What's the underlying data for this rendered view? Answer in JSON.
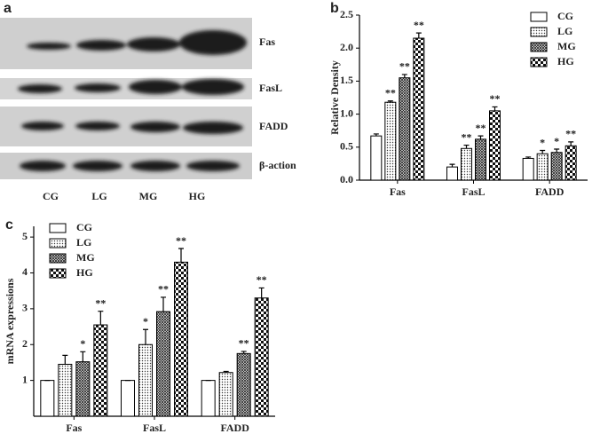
{
  "panel_a": {
    "panel": "a",
    "rows": [
      "Fas",
      "FasL",
      "FADD",
      "β-action"
    ],
    "columns": [
      "CG",
      "LG",
      "MG",
      "HG"
    ]
  },
  "chart_data": [
    {
      "type": "bar",
      "panel": "b",
      "y_label": "Relative Density",
      "categories": [
        "Fas",
        "FasL",
        "FADD"
      ],
      "ylim": [
        0,
        2.5
      ],
      "yticks": [
        {
          "value": 0,
          "label": "0.0"
        },
        0.5,
        {
          "value": 1,
          "label": "1.0"
        },
        1.5,
        {
          "value": 2,
          "label": "2.0"
        },
        2.5
      ],
      "legend": "upper right",
      "series": [
        {
          "name": "CG",
          "color": "#000000",
          "pattern": "plain",
          "values": [
            0.67,
            0.2,
            0.33
          ],
          "errors": [
            0.03,
            0.04,
            0.02
          ],
          "significance": [
            null,
            null,
            null
          ]
        },
        {
          "name": "LG",
          "color": "#000000",
          "pattern": "dots",
          "values": [
            1.18,
            0.48,
            0.4
          ],
          "errors": [
            0.02,
            0.05,
            0.05
          ],
          "significance": [
            "**",
            "**",
            "*"
          ]
        },
        {
          "name": "MG",
          "color": "#000000",
          "pattern": "crosshatch",
          "values": [
            1.55,
            0.62,
            0.42
          ],
          "errors": [
            0.05,
            0.05,
            0.05
          ],
          "significance": [
            "**",
            "**",
            "*"
          ]
        },
        {
          "name": "HG",
          "color": "#000000",
          "pattern": "checker",
          "values": [
            2.15,
            1.05,
            0.52
          ],
          "errors": [
            0.08,
            0.06,
            0.06
          ],
          "significance": [
            "**",
            "**",
            "**"
          ]
        }
      ]
    },
    {
      "type": "bar",
      "panel": "c",
      "y_label": "mRNA expressions",
      "categories": [
        "Fas",
        "FasL",
        "FADD"
      ],
      "ylim": [
        0,
        5.3
      ],
      "yticks": [
        1,
        2,
        3,
        4,
        5
      ],
      "legend": "upper left",
      "series": [
        {
          "name": "CG",
          "color": "#000000",
          "pattern": "plain",
          "values": [
            1,
            1,
            1
          ],
          "errors": [
            0,
            0,
            0
          ],
          "significance": [
            null,
            null,
            null
          ]
        },
        {
          "name": "LG",
          "color": "#000000",
          "pattern": "dots",
          "values": [
            1.45,
            2.0,
            1.22
          ],
          "errors": [
            0.25,
            0.42,
            0.03
          ],
          "significance": [
            null,
            "*",
            null
          ]
        },
        {
          "name": "MG",
          "color": "#000000",
          "pattern": "crosshatch",
          "values": [
            1.52,
            2.92,
            1.75
          ],
          "errors": [
            0.28,
            0.4,
            0.06
          ],
          "significance": [
            "*",
            "**",
            "**"
          ]
        },
        {
          "name": "HG",
          "color": "#000000",
          "pattern": "checker",
          "values": [
            2.55,
            4.3,
            3.3
          ],
          "errors": [
            0.38,
            0.38,
            0.28
          ],
          "significance": [
            "**",
            "**",
            "**"
          ]
        }
      ]
    }
  ]
}
